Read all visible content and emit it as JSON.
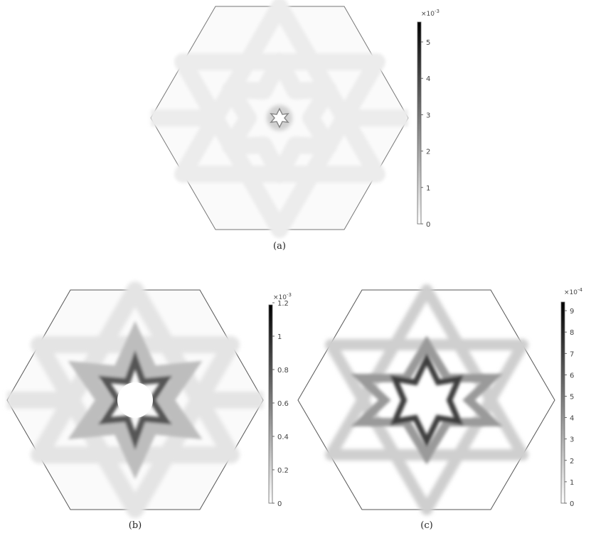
{
  "panels": [
    {
      "caption": "(a)",
      "colorbar": {
        "multiplier_base": "×10",
        "multiplier_exp": "-3",
        "ticks": [
          "0",
          "1",
          "2",
          "3",
          "4",
          "5"
        ]
      }
    },
    {
      "caption": "(b)",
      "colorbar": {
        "multiplier_base": "×10",
        "multiplier_exp": "-3",
        "ticks": [
          "0",
          "0.2",
          "0.4",
          "0.6",
          "0.8",
          "1",
          "1.2"
        ]
      }
    },
    {
      "caption": "(c)",
      "colorbar": {
        "multiplier_base": "×10",
        "multiplier_exp": "-4",
        "ticks": [
          "0",
          "1",
          "2",
          "3",
          "4",
          "5",
          "6",
          "7",
          "8",
          "9"
        ]
      }
    }
  ],
  "colors": {
    "colormap_low": "#ffffff",
    "colormap_high": "#000000",
    "outline": "#555555"
  }
}
